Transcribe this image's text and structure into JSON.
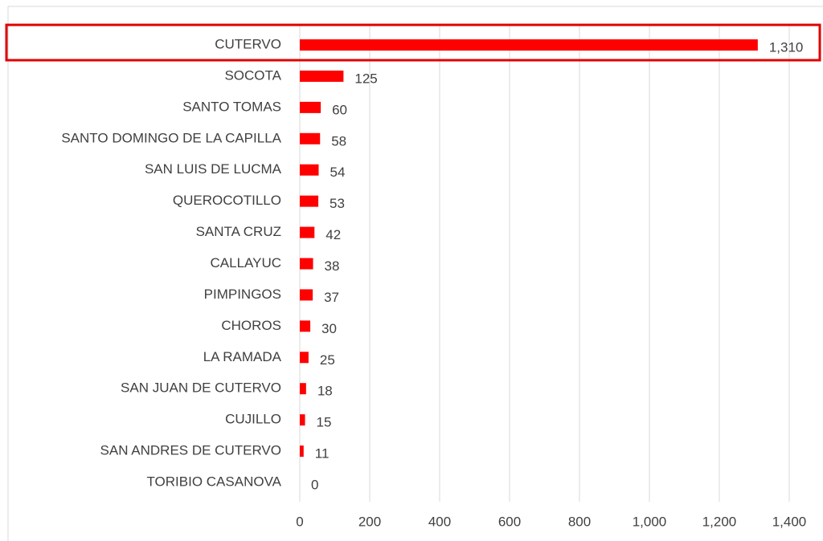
{
  "chart_data": {
    "type": "bar",
    "orientation": "horizontal",
    "categories": [
      "CUTERVO",
      "SOCOTA",
      "SANTO TOMAS",
      "SANTO DOMINGO DE LA CAPILLA",
      "SAN LUIS DE LUCMA",
      "QUEROCOTILLO",
      "SANTA CRUZ",
      "CALLAYUC",
      "PIMPINGOS",
      "CHOROS",
      "LA RAMADA",
      "SAN JUAN DE CUTERVO",
      "CUJILLO",
      "SAN ANDRES DE CUTERVO",
      "TORIBIO CASANOVA"
    ],
    "values": [
      1310,
      125,
      60,
      58,
      54,
      53,
      42,
      38,
      37,
      30,
      25,
      18,
      15,
      11,
      0
    ],
    "value_labels": [
      "1,310",
      "125",
      "60",
      "58",
      "54",
      "53",
      "42",
      "38",
      "37",
      "30",
      "25",
      "18",
      "15",
      "11",
      "0"
    ],
    "color": "#ff0000",
    "xlim": [
      0,
      1400
    ],
    "xticks": [
      0,
      200,
      400,
      600,
      800,
      {
        "value": 1000,
        "label": "1,000"
      },
      {
        "value": 1200,
        "label": "1,200"
      },
      {
        "value": 1400,
        "label": "1,400"
      }
    ],
    "grid": true
  }
}
